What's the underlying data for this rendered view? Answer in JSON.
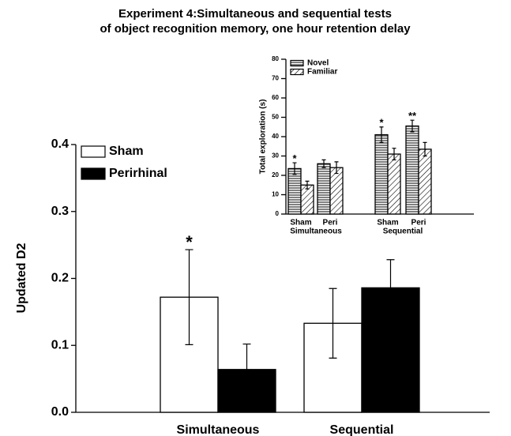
{
  "chart_data": [
    {
      "type": "bar",
      "title": [
        "Experiment 4:Simultaneous and sequential tests",
        "of object recognition memory, one hour retention delay"
      ],
      "y_label": "Updated D2",
      "categories": [
        "Simultaneous",
        "Sequential"
      ],
      "series": [
        {
          "name": "Sham",
          "color": "#ffffff",
          "values": [
            0.172,
            0.133
          ],
          "errors": [
            0.071,
            0.052
          ],
          "annotations": [
            "*",
            null
          ]
        },
        {
          "name": "Perirhinal",
          "color": "#000000",
          "values": [
            0.064,
            0.186
          ],
          "errors": [
            0.038,
            0.042
          ],
          "annotations": [
            null,
            null
          ]
        }
      ],
      "ylim": [
        0,
        0.4
      ],
      "yticks": [
        {
          "value": 0,
          "label": "0.0"
        },
        0.1,
        0.2,
        0.3,
        0.4
      ],
      "legend": "top-left"
    },
    {
      "type": "bar",
      "y_label": "Total exploration (s)",
      "categories": [
        "Sham",
        "Peri",
        "Sham",
        "Peri"
      ],
      "groups": [
        "Simultaneous",
        "Sequential"
      ],
      "series": [
        {
          "name": "Novel",
          "color": "#000000",
          "pattern": "horizontal",
          "values": [
            23.5,
            26,
            41,
            45.5
          ],
          "errors": [
            3,
            2,
            4,
            3
          ],
          "annotations": [
            "*",
            null,
            "*",
            "**"
          ]
        },
        {
          "name": "Familiar",
          "color": "#000000",
          "pattern": "diagonal",
          "values": [
            15,
            24,
            31,
            33.5
          ],
          "errors": [
            2,
            3,
            3,
            3.5
          ],
          "annotations": [
            null,
            null,
            null,
            null
          ]
        }
      ],
      "ylim": [
        0,
        80
      ],
      "yticks": [
        0,
        10,
        20,
        30,
        40,
        50,
        60,
        70,
        80
      ],
      "legend": "top-left"
    }
  ]
}
